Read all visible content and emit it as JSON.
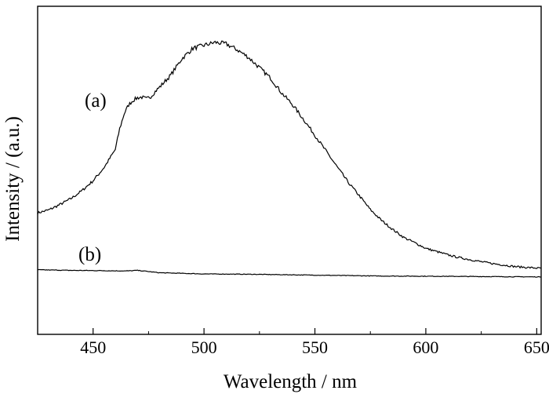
{
  "chart_data": {
    "type": "line",
    "title": "",
    "xlabel": "Wavelength / nm",
    "ylabel": "Intensity / (a.u.)",
    "xlim": [
      425,
      652
    ],
    "ylim": [
      0,
      1
    ],
    "x_ticks": [
      450,
      500,
      550,
      600,
      650
    ],
    "y_ticks_shown": false,
    "grid": false,
    "legend": "none",
    "colors": {
      "line": "#000000",
      "axis": "#000000",
      "background": "#ffffff"
    },
    "series": [
      {
        "name": "(a)",
        "x": [
          425,
          430,
          435,
          440,
          445,
          450,
          455,
          460,
          462,
          464,
          466,
          468,
          470,
          472,
          474,
          476,
          478,
          480,
          485,
          490,
          495,
          500,
          505,
          510,
          515,
          520,
          525,
          530,
          535,
          540,
          545,
          550,
          555,
          560,
          565,
          570,
          575,
          580,
          585,
          590,
          595,
          600,
          605,
          610,
          615,
          620,
          625,
          630,
          635,
          640,
          645,
          652
        ],
        "y": [
          0.197,
          0.207,
          0.225,
          0.245,
          0.272,
          0.305,
          0.35,
          0.41,
          0.48,
          0.53,
          0.56,
          0.575,
          0.584,
          0.586,
          0.58,
          0.588,
          0.605,
          0.62,
          0.66,
          0.715,
          0.75,
          0.76,
          0.77,
          0.765,
          0.745,
          0.72,
          0.685,
          0.65,
          0.6,
          0.56,
          0.51,
          0.458,
          0.405,
          0.352,
          0.3,
          0.255,
          0.208,
          0.172,
          0.142,
          0.115,
          0.097,
          0.078,
          0.067,
          0.056,
          0.047,
          0.04,
          0.033,
          0.027,
          0.022,
          0.017,
          0.014,
          0.011
        ]
      },
      {
        "name": "(b)",
        "x": [
          425,
          440,
          455,
          465,
          470,
          475,
          480,
          490,
          500,
          520,
          550,
          580,
          610,
          630,
          652
        ],
        "y": [
          0.006,
          0.004,
          0.003,
          0.002,
          0.004,
          0.0,
          -0.004,
          -0.006,
          -0.008,
          -0.009,
          -0.012,
          -0.015,
          -0.016,
          -0.017,
          -0.018
        ]
      }
    ],
    "annotations": [
      "(a)",
      "(b)"
    ]
  }
}
